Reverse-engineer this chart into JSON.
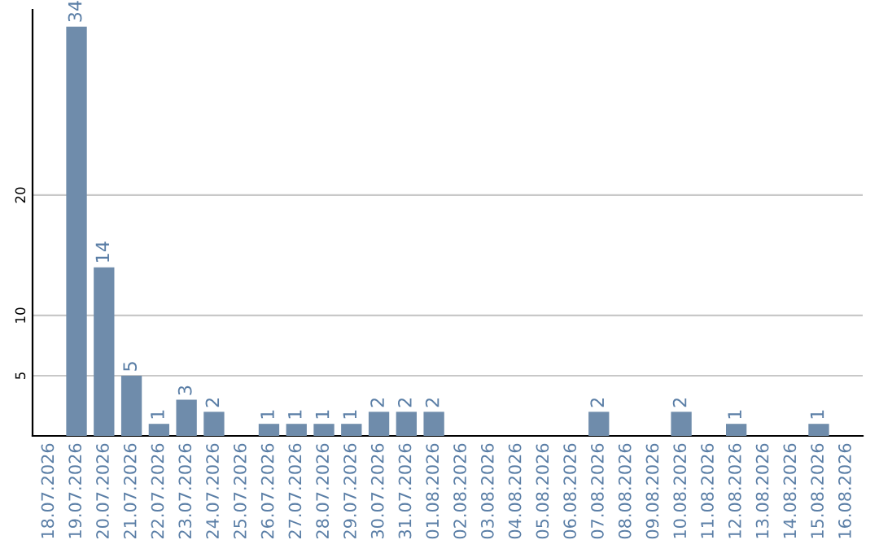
{
  "chart_data": {
    "type": "bar",
    "categories": [
      "18.07.2026",
      "19.07.2026",
      "20.07.2026",
      "21.07.2026",
      "22.07.2026",
      "23.07.2026",
      "24.07.2026",
      "25.07.2026",
      "26.07.2026",
      "27.07.2026",
      "28.07.2026",
      "29.07.2026",
      "30.07.2026",
      "31.07.2026",
      "01.08.2026",
      "02.08.2026",
      "03.08.2026",
      "04.08.2026",
      "05.08.2026",
      "06.08.2026",
      "07.08.2026",
      "08.08.2026",
      "09.08.2026",
      "10.08.2026",
      "11.08.2026",
      "12.08.2026",
      "13.08.2026",
      "14.08.2026",
      "15.08.2026",
      "16.08.2026"
    ],
    "values": [
      0,
      34,
      14,
      5,
      1,
      3,
      2,
      0,
      1,
      1,
      1,
      1,
      2,
      2,
      2,
      0,
      0,
      0,
      0,
      0,
      2,
      0,
      0,
      2,
      0,
      1,
      0,
      0,
      1,
      0
    ],
    "value_labels": [
      null,
      "34",
      "14",
      "5",
      "1",
      "3",
      "2",
      null,
      "1",
      "1",
      "1",
      "1",
      "2",
      "2",
      "2",
      null,
      null,
      null,
      null,
      null,
      "2",
      null,
      null,
      "2",
      null,
      "1",
      null,
      null,
      "1",
      null
    ],
    "color": "#6f8cab",
    "ylim": [
      0,
      35.4
    ],
    "yticks": [
      5,
      10,
      20
    ],
    "grid": "y"
  }
}
